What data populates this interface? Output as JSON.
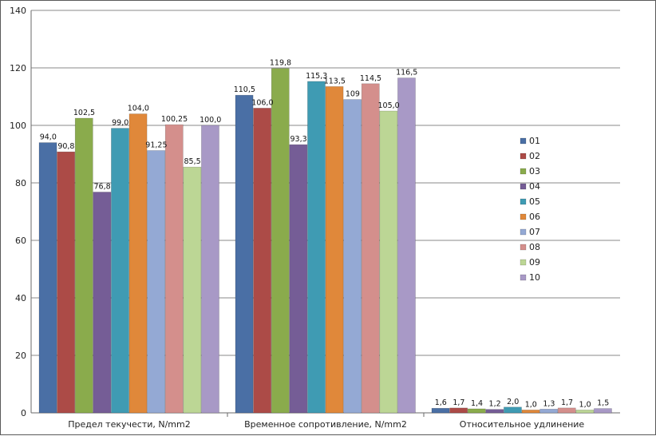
{
  "chart_data": {
    "type": "bar",
    "categories": [
      "Предел текучести, N/mm2",
      "Временное сопротивление, N/mm2",
      "Относительное удлинение"
    ],
    "series": [
      {
        "name": "01",
        "color": "#4a6fa5",
        "values": [
          94.0,
          110.5,
          1.6
        ],
        "labels": [
          "94,0",
          "110,5",
          "1,6"
        ]
      },
      {
        "name": "02",
        "color": "#ac4b47",
        "values": [
          90.8,
          106.0,
          1.7
        ],
        "labels": [
          "90,8",
          "106,0",
          "1,7"
        ]
      },
      {
        "name": "03",
        "color": "#8aab4c",
        "values": [
          102.5,
          119.8,
          1.4
        ],
        "labels": [
          "102,5",
          "119,8",
          "1,4"
        ]
      },
      {
        "name": "04",
        "color": "#755d96",
        "values": [
          76.8,
          93.3,
          1.2
        ],
        "labels": [
          "76,8",
          "93,3",
          "1,2"
        ]
      },
      {
        "name": "05",
        "color": "#3f9bb3",
        "values": [
          99.0,
          115.3,
          2.0
        ],
        "labels": [
          "99,0",
          "115,3",
          "2,0"
        ]
      },
      {
        "name": "06",
        "color": "#e0883a",
        "values": [
          104.0,
          113.5,
          1.0
        ],
        "labels": [
          "104,0",
          "113,5",
          "1,0"
        ]
      },
      {
        "name": "07",
        "color": "#94a9d4",
        "values": [
          91.25,
          109.0,
          1.3
        ],
        "labels": [
          "91,25",
          "109",
          "1,3"
        ]
      },
      {
        "name": "08",
        "color": "#d48f8c",
        "values": [
          100.25,
          114.5,
          1.7
        ],
        "labels": [
          "100,25",
          "114,5",
          "1,7"
        ]
      },
      {
        "name": "09",
        "color": "#bcd695",
        "values": [
          85.5,
          105.0,
          1.0
        ],
        "labels": [
          "85,5",
          "105,0",
          "1,0"
        ]
      },
      {
        "name": "10",
        "color": "#a899c6",
        "values": [
          100.0,
          116.5,
          1.5
        ],
        "labels": [
          "100,0",
          "116,5",
          "1,5"
        ]
      }
    ],
    "y_ticks": [
      "0",
      "20",
      "40",
      "60",
      "80",
      "100",
      "120",
      "140"
    ],
    "ylim": [
      0,
      140
    ],
    "grid": true,
    "legend_position": "right"
  }
}
